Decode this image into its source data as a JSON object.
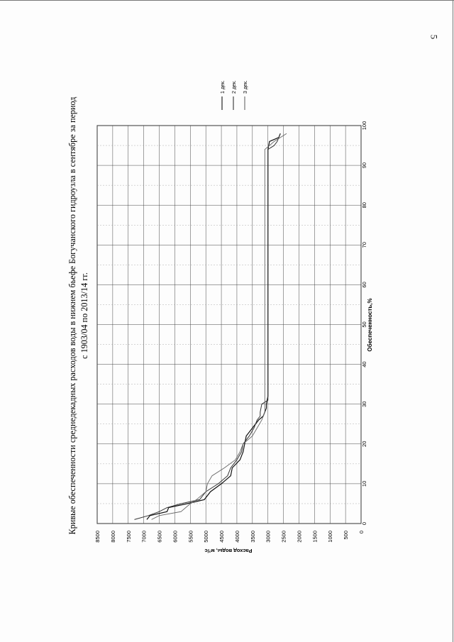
{
  "page": {
    "number": "5"
  },
  "chart_data": {
    "type": "line",
    "title_line1": "Кривые обеспеченности среднедекадных расходов воды в нижнем бьефе Богучанского гидроузла в сентябре за период",
    "title_line2": "с 1903/04 по 2013/14 гг.",
    "xlabel": "Обеспеченность,%",
    "ylabel": "Расход воды, м³/с",
    "xlim": [
      0,
      100
    ],
    "ylim": [
      0,
      8500
    ],
    "x_ticks": [
      0,
      10,
      20,
      30,
      40,
      50,
      60,
      70,
      80,
      90,
      100
    ],
    "y_ticks": [
      0,
      500,
      1000,
      1500,
      2000,
      2500,
      3000,
      3500,
      4000,
      4500,
      5000,
      5500,
      6000,
      6500,
      7000,
      7500,
      8000,
      8500
    ],
    "grid": true,
    "legend_position": "right",
    "series": [
      {
        "name": "1 дек.",
        "points": [
          [
            1,
            6900
          ],
          [
            2,
            6800
          ],
          [
            3,
            6250
          ],
          [
            4,
            6200
          ],
          [
            5,
            5600
          ],
          [
            6,
            5050
          ],
          [
            8,
            4850
          ],
          [
            10,
            4500
          ],
          [
            12,
            4200
          ],
          [
            14,
            4150
          ],
          [
            16,
            3900
          ],
          [
            18,
            3800
          ],
          [
            20,
            3750
          ],
          [
            22,
            3700
          ],
          [
            24,
            3500
          ],
          [
            26,
            3300
          ],
          [
            27,
            3150
          ],
          [
            28,
            3100
          ],
          [
            29,
            3050
          ],
          [
            30,
            3050
          ],
          [
            32,
            3000
          ],
          [
            94,
            3000
          ],
          [
            96,
            2950
          ],
          [
            97,
            2650
          ],
          [
            98,
            2600
          ]
        ]
      },
      {
        "name": "2 дек.",
        "points": [
          [
            1,
            7300
          ],
          [
            2,
            6850
          ],
          [
            3,
            6500
          ],
          [
            4,
            6250
          ],
          [
            5,
            5800
          ],
          [
            6,
            5200
          ],
          [
            8,
            5000
          ],
          [
            10,
            4600
          ],
          [
            12,
            4300
          ],
          [
            14,
            4200
          ],
          [
            16,
            4000
          ],
          [
            18,
            3850
          ],
          [
            20,
            3800
          ],
          [
            22,
            3600
          ],
          [
            24,
            3450
          ],
          [
            26,
            3350
          ],
          [
            27,
            3250
          ],
          [
            28,
            3250
          ],
          [
            30,
            3200
          ],
          [
            31,
            3000
          ],
          [
            94,
            3000
          ],
          [
            95,
            2800
          ],
          [
            96,
            2700
          ],
          [
            98,
            2600
          ]
        ]
      },
      {
        "name": "3 дек.",
        "points": [
          [
            1,
            6750
          ],
          [
            2,
            6500
          ],
          [
            3,
            5800
          ],
          [
            5,
            5500
          ],
          [
            6,
            5300
          ],
          [
            8,
            5000
          ],
          [
            10,
            4950
          ],
          [
            12,
            4800
          ],
          [
            14,
            4400
          ],
          [
            16,
            4050
          ],
          [
            18,
            3900
          ],
          [
            20,
            3800
          ],
          [
            22,
            3500
          ],
          [
            24,
            3350
          ],
          [
            26,
            3200
          ],
          [
            28,
            3100
          ],
          [
            30,
            3100
          ],
          [
            94,
            3100
          ],
          [
            96,
            2800
          ],
          [
            98,
            2400
          ]
        ]
      }
    ]
  }
}
